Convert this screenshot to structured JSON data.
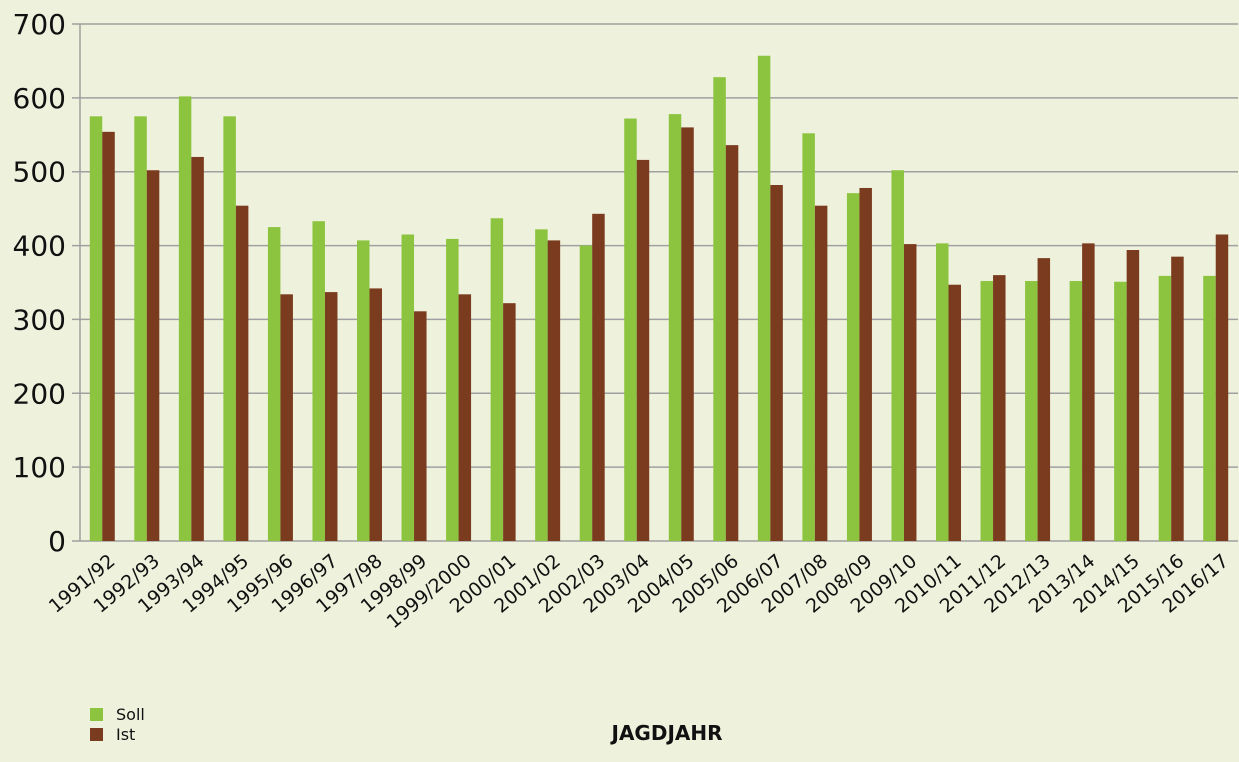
{
  "chart_data": {
    "type": "bar",
    "x_label": "JAGDJAHR",
    "categories": [
      "1991/92",
      "1992/93",
      "1993/94",
      "1994/95",
      "1995/96",
      "1996/97",
      "1997/98",
      "1998/99",
      "1999/2000",
      "2000/01",
      "2001/02",
      "2002/03",
      "2003/04",
      "2004/05",
      "2005/06",
      "2006/07",
      "2007/08",
      "2008/09",
      "2009/10",
      "2010/11",
      "2011/12",
      "2012/13",
      "2013/14",
      "2014/15",
      "2015/16",
      "2016/17"
    ],
    "series": [
      {
        "name": "Soll",
        "color": "#8cc43f",
        "values": [
          575,
          575,
          602,
          575,
          425,
          433,
          407,
          415,
          409,
          437,
          422,
          400,
          572,
          578,
          628,
          657,
          552,
          471,
          502,
          403,
          352,
          352,
          352,
          351,
          359,
          359
        ]
      },
      {
        "name": "Ist",
        "color": "#7a3b1e",
        "values": [
          554,
          502,
          520,
          454,
          334,
          337,
          342,
          311,
          334,
          322,
          407,
          443,
          516,
          560,
          536,
          482,
          454,
          478,
          402,
          347,
          360,
          383,
          403,
          394,
          385,
          415
        ]
      }
    ],
    "ylim": [
      0,
      700
    ],
    "yticks": [
      0,
      100,
      200,
      300,
      400,
      500,
      600,
      700
    ],
    "grid": true,
    "legend": "bottom-left"
  }
}
